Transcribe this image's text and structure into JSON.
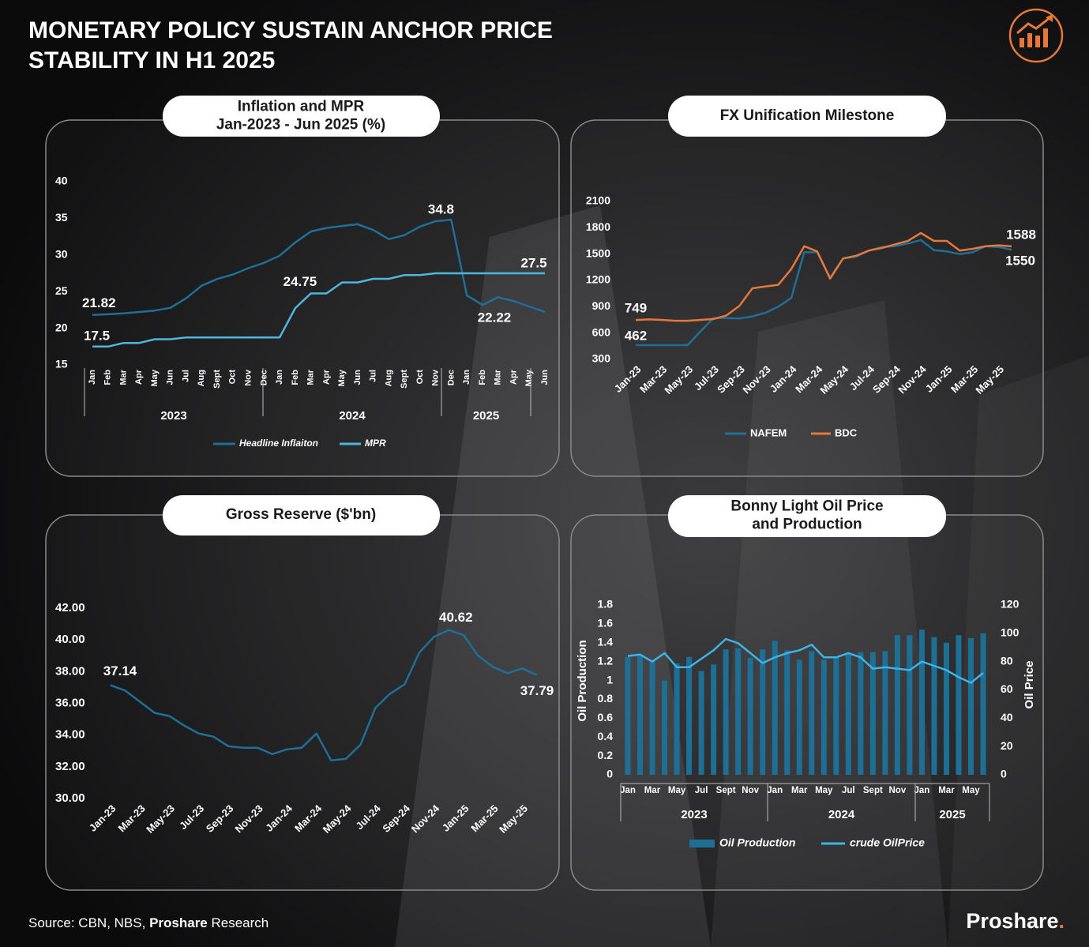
{
  "title": [
    "MONETARY POLICY SUSTAIN ANCHOR PRICE",
    "STABILITY IN H1 2025"
  ],
  "source": [
    "Source: CBN, NBS, ",
    "Proshare",
    " Research"
  ],
  "brand": [
    "Proshare",
    "."
  ],
  "chart_data": [
    {
      "type": "line",
      "title": [
        "Inflation and MPR",
        "Jan-2023 - Jun 2025 (%)"
      ],
      "categories": [
        "Jan",
        "Feb",
        "Mar",
        "Apr",
        "May",
        "Jun",
        "Jul",
        "Aug",
        "Sept",
        "Oct",
        "Nov",
        "Dec",
        "Jan",
        "Feb",
        "Mar",
        "Apr",
        "May",
        "Jun",
        "Jul",
        "Aug",
        "Sept",
        "Oct",
        "Nov",
        "Dec",
        "Jan",
        "Feb",
        "Mar",
        "Apr",
        "May",
        "Jun"
      ],
      "groups": [
        "2023",
        "2024",
        "2025"
      ],
      "series": [
        {
          "name": "Headline Inflaiton",
          "color": "#1f6f99",
          "values": [
            21.82,
            21.91,
            22.04,
            22.22,
            22.41,
            22.79,
            24.08,
            25.8,
            26.72,
            27.33,
            28.2,
            28.92,
            29.9,
            31.7,
            33.2,
            33.69,
            33.95,
            34.19,
            33.4,
            32.15,
            32.7,
            33.88,
            34.6,
            34.8,
            24.48,
            23.18,
            24.23,
            23.71,
            22.97,
            22.22
          ]
        },
        {
          "name": "MPR",
          "color": "#4fb6e0",
          "values": [
            17.5,
            17.5,
            18,
            18,
            18.5,
            18.5,
            18.75,
            18.75,
            18.75,
            18.75,
            18.75,
            18.75,
            18.75,
            22.75,
            24.75,
            24.75,
            26.25,
            26.25,
            26.75,
            26.75,
            27.25,
            27.25,
            27.5,
            27.5,
            27.5,
            27.5,
            27.5,
            27.5,
            27.5,
            27.5
          ]
        }
      ],
      "ylim": [
        15,
        40
      ],
      "yticks": [
        15,
        20,
        25,
        30,
        35,
        40
      ]
    },
    {
      "type": "line",
      "title": [
        "FX Unification Milestone"
      ],
      "categories": [
        "Jan-23",
        null,
        "Mar-23",
        null,
        "May-23",
        null,
        "Jul-23",
        null,
        "Sep-23",
        null,
        "Nov-23",
        null,
        "Jan-24",
        null,
        "Mar-24",
        null,
        "May-24",
        null,
        "Jul-24",
        null,
        "Sep-24",
        null,
        "Nov-24",
        null,
        "Jan-25",
        null,
        "Mar-25",
        null,
        "May-25",
        null
      ],
      "series": [
        {
          "name": "NAFEM",
          "color": "#1f6f99",
          "values": [
            462,
            462,
            462,
            462,
            462,
            620,
            770,
            770,
            765,
            790,
            830,
            900,
            1000,
            1520,
            1520,
            1230,
            1450,
            1470,
            1540,
            1580,
            1590,
            1620,
            1660,
            1545,
            1530,
            1500,
            1520,
            1590,
            1580,
            1550
          ]
        },
        {
          "name": "BDC",
          "color": "#e8783a",
          "values": [
            749,
            755,
            750,
            740,
            740,
            750,
            760,
            800,
            910,
            1110,
            1130,
            1150,
            1330,
            1590,
            1530,
            1220,
            1450,
            1480,
            1540,
            1570,
            1610,
            1650,
            1740,
            1650,
            1650,
            1540,
            1560,
            1590,
            1600,
            1588
          ]
        }
      ],
      "ylim": [
        300,
        2100
      ],
      "yticks": [
        300,
        600,
        900,
        1200,
        1500,
        1800,
        2100
      ]
    },
    {
      "type": "line",
      "title": [
        "Gross Reserve ($'bn)"
      ],
      "categories": [
        "Jan-23",
        null,
        "Mar-23",
        null,
        "May-23",
        null,
        "Jul-23",
        null,
        "Sep-23",
        null,
        "Nov-23",
        null,
        "Jan-24",
        null,
        "Mar-24",
        null,
        "May-24",
        null,
        "Jul-24",
        null,
        "Sep-24",
        null,
        "Nov-24",
        null,
        "Jan-25",
        null,
        "Mar-25",
        null,
        "May-25",
        null
      ],
      "series": [
        {
          "name": "Gross Reserve",
          "color": "#1f6f99",
          "values": [
            37.14,
            36.8,
            36.1,
            35.4,
            35.2,
            34.6,
            34.1,
            33.9,
            33.3,
            33.2,
            33.2,
            32.8,
            33.1,
            33.2,
            34.1,
            32.4,
            32.5,
            33.4,
            35.7,
            36.6,
            37.2,
            39.2,
            40.2,
            40.62,
            40.3,
            39.0,
            38.3,
            37.9,
            38.2,
            37.79
          ]
        }
      ],
      "ylim": [
        30,
        42
      ],
      "yticks": [
        {
          "value": 30,
          "label": "30.00"
        },
        {
          "value": 32,
          "label": "32.00"
        },
        {
          "value": 34,
          "label": "34.00"
        },
        {
          "value": 36,
          "label": "36.00"
        },
        {
          "value": 38,
          "label": "38.00"
        },
        {
          "value": 40,
          "label": "40.00"
        },
        {
          "value": 42,
          "label": "42.00"
        }
      ]
    },
    {
      "type": "combo",
      "title": [
        "Bonny Light Oil Price",
        "and Production"
      ],
      "categories": [
        "Jan",
        null,
        "Mar",
        null,
        "May",
        null,
        "Jul",
        null,
        "Sept",
        null,
        "Nov",
        null,
        "Jan",
        null,
        "Mar",
        null,
        "May",
        null,
        "Jul",
        null,
        "Sept",
        null,
        "Nov",
        null,
        "Jan",
        null,
        "Mar",
        null,
        "May",
        null
      ],
      "groups": [
        "2023",
        "2024",
        "2025"
      ],
      "ylabel": "Oil Production",
      "y2label": "Oil Price",
      "series": [
        {
          "name": "Oil Production",
          "type": "bar",
          "color": "#1d6f96",
          "values": [
            1.25,
            1.27,
            1.2,
            1.0,
            1.18,
            1.25,
            1.1,
            1.17,
            1.33,
            1.34,
            1.24,
            1.33,
            1.42,
            1.32,
            1.22,
            1.31,
            1.22,
            1.25,
            1.28,
            1.3,
            1.3,
            1.31,
            1.48,
            1.48,
            1.54,
            1.46,
            1.4,
            1.48,
            1.45,
            1.5
          ]
        },
        {
          "name": "crude OilPrice",
          "type": "line",
          "axis": "y2",
          "color": "#3cb4e6",
          "values": [
            84,
            85,
            80,
            86,
            76,
            76,
            82,
            88,
            96,
            93,
            86,
            79,
            83,
            86,
            88,
            92,
            83,
            83,
            86,
            83,
            75,
            76,
            75,
            74,
            80,
            77,
            74,
            69,
            65,
            72
          ]
        }
      ],
      "ylim": [
        0,
        1.8
      ],
      "yticks": [
        0,
        0.2,
        0.4,
        0.6,
        0.8,
        1,
        1.2,
        1.4,
        1.6,
        1.8
      ],
      "y2lim": [
        0,
        120
      ],
      "y2ticks": [
        0,
        20,
        40,
        60,
        80,
        100,
        120
      ]
    }
  ]
}
